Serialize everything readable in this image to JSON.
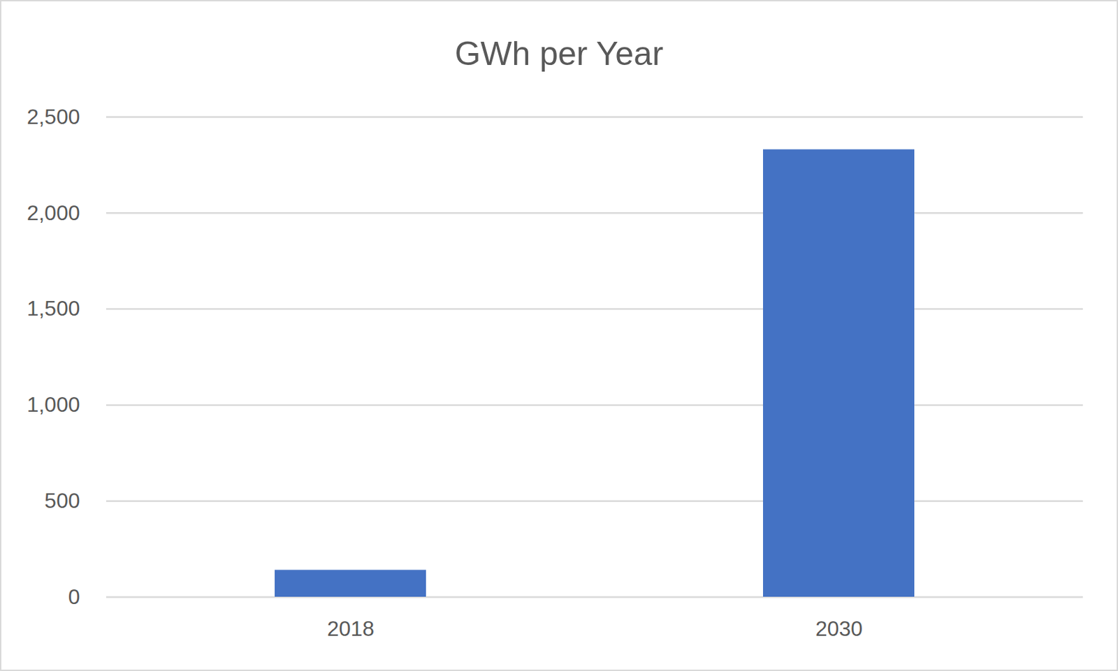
{
  "chart_data": {
    "type": "bar",
    "title": "GWh per Year",
    "categories": [
      "2018",
      "2030"
    ],
    "values": [
      140,
      2330
    ],
    "color": "#4472c4",
    "ylim": [
      0,
      2500
    ],
    "yticks": [
      0,
      500,
      1000,
      1500,
      2000,
      2500
    ],
    "grid": true
  }
}
